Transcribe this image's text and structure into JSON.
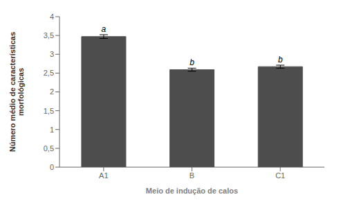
{
  "chart_data": {
    "type": "bar",
    "categories": [
      "A1",
      "B",
      "C1"
    ],
    "values": [
      3.47,
      2.59,
      2.67
    ],
    "errors": [
      0.05,
      0.04,
      0.04
    ],
    "annotations": [
      "a",
      "b",
      "b"
    ],
    "xlabel": "Meio de indução de calos",
    "ylabel": "Número médio de características\nmorfológicas",
    "ylim": [
      0,
      4
    ],
    "yticks": [
      0,
      {
        "value": 0.5,
        "label": "0,5"
      },
      1,
      {
        "value": 1.5,
        "label": "1,5"
      },
      2,
      {
        "value": 2.5,
        "label": "2,5"
      },
      3,
      {
        "value": 3.5,
        "label": "3,5"
      },
      4
    ],
    "color": "#4d4d4d",
    "grid": false
  }
}
